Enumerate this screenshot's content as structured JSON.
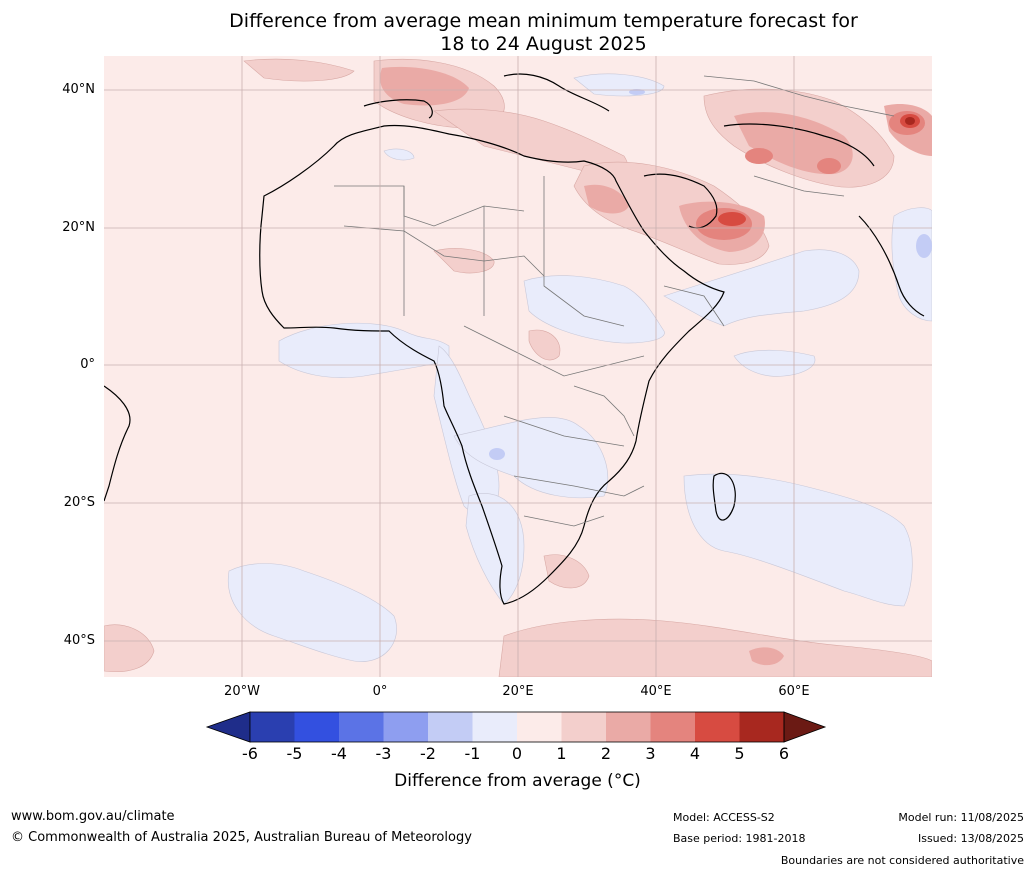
{
  "title": {
    "line1": "Difference from average mean minimum temperature forecast for",
    "line2": "18 to 24 August 2025"
  },
  "map": {
    "region": "Africa",
    "lat_labels": [
      "40°N",
      "20°N",
      "0°",
      "20°S",
      "40°S"
    ],
    "lon_labels": [
      "20°W",
      "0°",
      "20°E",
      "40°E",
      "60°E"
    ],
    "colors": {
      "land_outline": "#000000",
      "border": "#777777",
      "grid": "#c8b0b0",
      "background_anomaly_0_1": "#fcebe9"
    }
  },
  "colorbar": {
    "ticks": [
      "-6",
      "-5",
      "-4",
      "-3",
      "-2",
      "-1",
      "0",
      "1",
      "2",
      "3",
      "4",
      "5",
      "6"
    ],
    "colors": [
      "#1f2d8a",
      "#2a3fb0",
      "#3350e0",
      "#5b73e6",
      "#8e9ef0",
      "#c3ccf5",
      "#e9ecfb",
      "#fcebe9",
      "#f3cfcc",
      "#eaaaa6",
      "#e4847e",
      "#d74b41",
      "#a8281f",
      "#6b1a14"
    ],
    "label": "Difference from average (",
    "label_unit": "°C)"
  },
  "footer": {
    "url": "www.bom.gov.au/climate",
    "copyright": "© Commonwealth of Australia 2025, Australian Bureau of Meteorology",
    "model": "Model: ACCESS-S2",
    "base_period": "Base period: 1981-2018",
    "model_run": "Model run: 11/08/2025",
    "issued": "Issued: 13/08/2025",
    "disclaimer": "Boundaries are not considered authoritative"
  }
}
